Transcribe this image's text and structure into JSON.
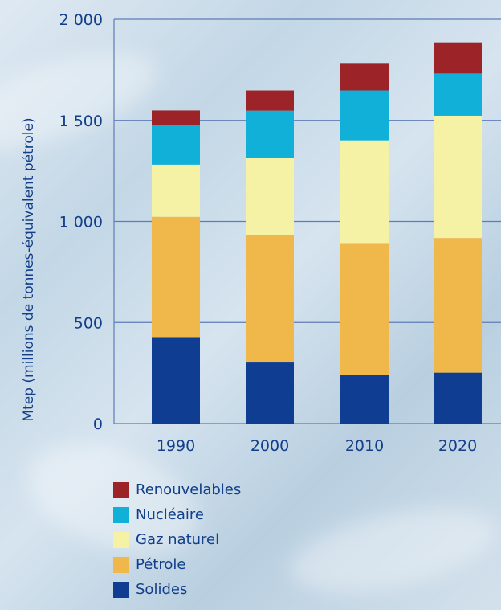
{
  "chart_data": {
    "type": "bar",
    "stacked": true,
    "title": "",
    "xlabel": "",
    "ylabel": "Mtep (millions de tonnes-équivalent pétrole)",
    "ylim": [
      0,
      2000
    ],
    "grid": true,
    "legend_position": "bottom-left",
    "categories": [
      "1990",
      "2000",
      "2010",
      "2020"
    ],
    "y_tick_labels": [
      "0",
      "500",
      "1 000",
      "1 500",
      "2 000"
    ],
    "y_ticks": [
      0,
      500,
      1000,
      1500,
      2000
    ],
    "series": [
      {
        "name": "Solides",
        "color": "#0e3d91",
        "values": [
          428,
          302,
          242,
          252
        ]
      },
      {
        "name": "Pétrole",
        "color": "#f0b84b",
        "values": [
          595,
          631,
          651,
          666
        ]
      },
      {
        "name": "Gaz naturel",
        "color": "#f5f2a6",
        "values": [
          258,
          380,
          508,
          605
        ]
      },
      {
        "name": "Nucléaire",
        "color": "#10b0d8",
        "values": [
          198,
          235,
          247,
          209
        ]
      },
      {
        "name": "Renouvelables",
        "color": "#9c2428",
        "values": [
          70,
          100,
          132,
          154
        ]
      }
    ]
  }
}
